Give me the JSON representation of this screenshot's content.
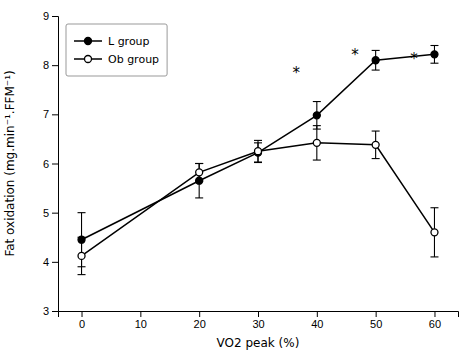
{
  "chart_data": {
    "type": "line",
    "xlabel": "VO2 peak (%)",
    "ylabel": "Fat oxidation (mg.min⁻¹.FFM⁻¹)",
    "x": [
      0,
      20,
      30,
      40,
      50,
      60
    ],
    "series": [
      {
        "name": "L group",
        "color": "#000000",
        "marker": "filled-circle",
        "line_style": "solid",
        "values": [
          4.45,
          5.65,
          6.22,
          6.98,
          8.1,
          8.22
        ],
        "errors": [
          0.55,
          0.35,
          0.2,
          0.28,
          0.2,
          0.18
        ]
      },
      {
        "name": "Ob group",
        "color": "#000000",
        "marker": "open-circle",
        "line_style": "solid",
        "values": [
          4.12,
          5.82,
          6.25,
          6.42,
          6.38,
          4.6
        ],
        "errors": [
          0.38,
          0.18,
          0.22,
          0.35,
          0.28,
          0.5
        ]
      }
    ],
    "annotations": [
      {
        "text": "*",
        "x": 36.5,
        "y": 7.73
      },
      {
        "text": "*",
        "x": 46.5,
        "y": 8.1
      },
      {
        "text": "*",
        "x": 56.5,
        "y": 8.03
      }
    ],
    "xlim": [
      -4,
      64
    ],
    "xticks": [
      0,
      10,
      20,
      30,
      40,
      50,
      60
    ],
    "ylim": [
      3,
      9
    ],
    "yticks": [
      3,
      4,
      5,
      6,
      7,
      8,
      9
    ],
    "grid": false,
    "legend": "upper left"
  }
}
